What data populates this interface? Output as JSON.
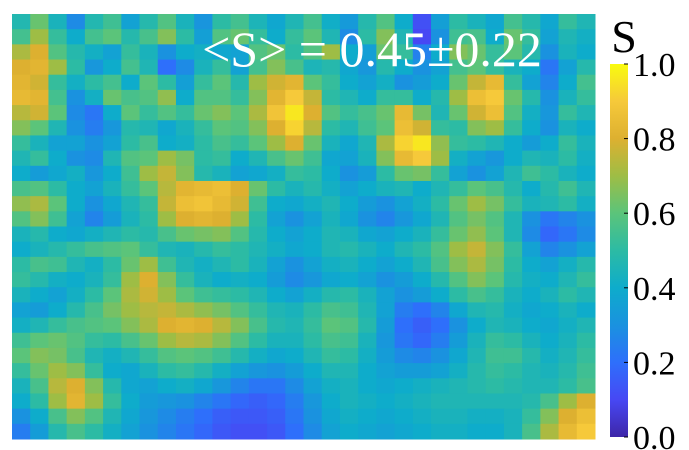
{
  "chart_data": {
    "type": "heatmap",
    "rows": 28,
    "cols": 32,
    "colormap": "parula",
    "clim": [
      0.0,
      1.0
    ],
    "annotation": "<S> = 0.45±0.22",
    "colorbar": {
      "title": "S",
      "ticks": [
        {
          "value": 0.0,
          "label": "0.0"
        },
        {
          "value": 0.2,
          "label": "0.2"
        },
        {
          "value": 0.4,
          "label": "0.4"
        },
        {
          "value": 0.6,
          "label": "0.6"
        },
        {
          "value": 0.8,
          "label": "0.8"
        },
        {
          "value": 1.0,
          "label": "1.0"
        }
      ]
    },
    "values": [
      [
        0.47,
        0.62,
        0.44,
        0.28,
        0.47,
        0.54,
        0.36,
        0.48,
        0.58,
        0.44,
        0.31,
        0.5,
        0.55,
        0.45,
        0.38,
        0.46,
        0.55,
        0.41,
        0.33,
        0.48,
        0.58,
        0.4,
        0.12,
        0.35,
        0.5,
        0.44,
        0.38,
        0.55,
        0.48,
        0.38,
        0.52,
        0.46
      ],
      [
        0.55,
        0.7,
        0.52,
        0.4,
        0.55,
        0.6,
        0.48,
        0.56,
        0.66,
        0.5,
        0.35,
        0.58,
        0.62,
        0.52,
        0.4,
        0.52,
        0.6,
        0.46,
        0.28,
        0.5,
        0.66,
        0.46,
        0.1,
        0.3,
        0.54,
        0.56,
        0.4,
        0.62,
        0.52,
        0.36,
        0.46,
        0.42
      ],
      [
        0.72,
        0.8,
        0.58,
        0.48,
        0.42,
        0.36,
        0.52,
        0.44,
        0.3,
        0.4,
        0.42,
        0.38,
        0.36,
        0.58,
        0.62,
        0.5,
        0.58,
        0.7,
        0.4,
        0.35,
        0.62,
        0.52,
        0.25,
        0.4,
        0.66,
        0.62,
        0.52,
        0.6,
        0.48,
        0.3,
        0.44,
        0.4
      ],
      [
        0.8,
        0.82,
        0.7,
        0.5,
        0.32,
        0.4,
        0.55,
        0.46,
        0.2,
        0.28,
        0.44,
        0.52,
        0.36,
        0.55,
        0.66,
        0.56,
        0.45,
        0.48,
        0.38,
        0.32,
        0.48,
        0.4,
        0.3,
        0.36,
        0.55,
        0.6,
        0.52,
        0.44,
        0.4,
        0.22,
        0.36,
        0.48
      ],
      [
        0.82,
        0.78,
        0.52,
        0.42,
        0.5,
        0.55,
        0.4,
        0.6,
        0.5,
        0.35,
        0.52,
        0.6,
        0.48,
        0.7,
        0.78,
        0.82,
        0.6,
        0.52,
        0.4,
        0.36,
        0.42,
        0.3,
        0.34,
        0.4,
        0.62,
        0.76,
        0.84,
        0.52,
        0.36,
        0.26,
        0.4,
        0.55
      ],
      [
        0.84,
        0.82,
        0.55,
        0.3,
        0.42,
        0.62,
        0.56,
        0.58,
        0.68,
        0.4,
        0.58,
        0.58,
        0.52,
        0.66,
        0.82,
        0.9,
        0.76,
        0.5,
        0.46,
        0.4,
        0.52,
        0.52,
        0.4,
        0.48,
        0.7,
        0.86,
        0.9,
        0.62,
        0.48,
        0.3,
        0.44,
        0.52
      ],
      [
        0.74,
        0.78,
        0.6,
        0.28,
        0.22,
        0.4,
        0.6,
        0.52,
        0.58,
        0.52,
        0.62,
        0.66,
        0.6,
        0.72,
        0.88,
        0.96,
        0.8,
        0.58,
        0.52,
        0.56,
        0.62,
        0.84,
        0.64,
        0.46,
        0.62,
        0.78,
        0.86,
        0.58,
        0.42,
        0.32,
        0.52,
        0.46
      ],
      [
        0.66,
        0.6,
        0.46,
        0.3,
        0.24,
        0.32,
        0.48,
        0.46,
        0.38,
        0.44,
        0.52,
        0.6,
        0.58,
        0.66,
        0.8,
        0.92,
        0.74,
        0.5,
        0.46,
        0.54,
        0.6,
        0.86,
        0.78,
        0.52,
        0.5,
        0.66,
        0.7,
        0.52,
        0.4,
        0.3,
        0.44,
        0.4
      ],
      [
        0.52,
        0.44,
        0.36,
        0.36,
        0.3,
        0.36,
        0.5,
        0.56,
        0.4,
        0.42,
        0.5,
        0.56,
        0.52,
        0.6,
        0.7,
        0.8,
        0.62,
        0.44,
        0.38,
        0.46,
        0.72,
        0.92,
        0.96,
        0.68,
        0.52,
        0.5,
        0.46,
        0.4,
        0.34,
        0.4,
        0.52,
        0.44
      ],
      [
        0.46,
        0.52,
        0.4,
        0.3,
        0.28,
        0.46,
        0.58,
        0.6,
        0.7,
        0.64,
        0.5,
        0.52,
        0.4,
        0.46,
        0.56,
        0.62,
        0.54,
        0.38,
        0.36,
        0.44,
        0.66,
        0.84,
        0.9,
        0.7,
        0.42,
        0.36,
        0.32,
        0.4,
        0.46,
        0.44,
        0.5,
        0.42
      ],
      [
        0.4,
        0.34,
        0.38,
        0.42,
        0.32,
        0.4,
        0.54,
        0.7,
        0.76,
        0.66,
        0.48,
        0.44,
        0.36,
        0.38,
        0.42,
        0.52,
        0.5,
        0.4,
        0.3,
        0.34,
        0.5,
        0.62,
        0.64,
        0.52,
        0.36,
        0.3,
        0.36,
        0.46,
        0.54,
        0.5,
        0.44,
        0.4
      ],
      [
        0.56,
        0.58,
        0.5,
        0.4,
        0.36,
        0.44,
        0.52,
        0.6,
        0.74,
        0.82,
        0.84,
        0.86,
        0.8,
        0.62,
        0.5,
        0.44,
        0.48,
        0.42,
        0.36,
        0.4,
        0.44,
        0.46,
        0.4,
        0.46,
        0.52,
        0.6,
        0.56,
        0.48,
        0.4,
        0.48,
        0.54,
        0.46
      ],
      [
        0.68,
        0.72,
        0.6,
        0.4,
        0.3,
        0.38,
        0.46,
        0.52,
        0.76,
        0.86,
        0.88,
        0.84,
        0.78,
        0.54,
        0.4,
        0.38,
        0.42,
        0.46,
        0.4,
        0.34,
        0.3,
        0.36,
        0.42,
        0.5,
        0.62,
        0.7,
        0.64,
        0.52,
        0.44,
        0.46,
        0.5,
        0.42
      ],
      [
        0.58,
        0.66,
        0.54,
        0.36,
        0.26,
        0.34,
        0.44,
        0.5,
        0.7,
        0.8,
        0.82,
        0.8,
        0.7,
        0.5,
        0.36,
        0.3,
        0.36,
        0.44,
        0.38,
        0.3,
        0.26,
        0.32,
        0.38,
        0.46,
        0.58,
        0.64,
        0.58,
        0.46,
        0.3,
        0.22,
        0.26,
        0.3
      ],
      [
        0.44,
        0.48,
        0.4,
        0.38,
        0.42,
        0.46,
        0.5,
        0.48,
        0.56,
        0.62,
        0.64,
        0.66,
        0.58,
        0.48,
        0.4,
        0.36,
        0.4,
        0.46,
        0.44,
        0.38,
        0.36,
        0.4,
        0.44,
        0.52,
        0.62,
        0.68,
        0.6,
        0.46,
        0.28,
        0.18,
        0.22,
        0.28
      ],
      [
        0.4,
        0.44,
        0.48,
        0.52,
        0.56,
        0.58,
        0.6,
        0.52,
        0.46,
        0.44,
        0.48,
        0.52,
        0.5,
        0.46,
        0.42,
        0.38,
        0.4,
        0.46,
        0.48,
        0.44,
        0.4,
        0.46,
        0.5,
        0.58,
        0.7,
        0.76,
        0.66,
        0.52,
        0.36,
        0.26,
        0.3,
        0.36
      ],
      [
        0.5,
        0.56,
        0.54,
        0.46,
        0.42,
        0.5,
        0.62,
        0.7,
        0.54,
        0.46,
        0.42,
        0.46,
        0.5,
        0.44,
        0.36,
        0.3,
        0.36,
        0.42,
        0.44,
        0.4,
        0.36,
        0.4,
        0.46,
        0.56,
        0.66,
        0.72,
        0.64,
        0.5,
        0.4,
        0.36,
        0.42,
        0.48
      ],
      [
        0.52,
        0.48,
        0.42,
        0.4,
        0.44,
        0.52,
        0.7,
        0.8,
        0.66,
        0.52,
        0.44,
        0.4,
        0.42,
        0.4,
        0.34,
        0.28,
        0.32,
        0.38,
        0.4,
        0.36,
        0.3,
        0.34,
        0.4,
        0.48,
        0.58,
        0.66,
        0.6,
        0.48,
        0.42,
        0.4,
        0.46,
        0.52
      ],
      [
        0.44,
        0.4,
        0.36,
        0.42,
        0.5,
        0.6,
        0.72,
        0.78,
        0.7,
        0.6,
        0.54,
        0.52,
        0.5,
        0.46,
        0.4,
        0.36,
        0.42,
        0.48,
        0.5,
        0.44,
        0.36,
        0.3,
        0.34,
        0.4,
        0.5,
        0.56,
        0.52,
        0.44,
        0.4,
        0.44,
        0.5,
        0.46
      ],
      [
        0.36,
        0.34,
        0.4,
        0.48,
        0.56,
        0.64,
        0.7,
        0.74,
        0.76,
        0.72,
        0.68,
        0.64,
        0.58,
        0.52,
        0.46,
        0.44,
        0.5,
        0.56,
        0.54,
        0.46,
        0.36,
        0.24,
        0.2,
        0.26,
        0.38,
        0.46,
        0.48,
        0.42,
        0.38,
        0.4,
        0.44,
        0.4
      ],
      [
        0.42,
        0.46,
        0.52,
        0.56,
        0.58,
        0.6,
        0.66,
        0.72,
        0.8,
        0.82,
        0.8,
        0.74,
        0.66,
        0.56,
        0.48,
        0.46,
        0.52,
        0.6,
        0.58,
        0.48,
        0.34,
        0.2,
        0.16,
        0.2,
        0.3,
        0.4,
        0.46,
        0.44,
        0.4,
        0.38,
        0.42,
        0.46
      ],
      [
        0.54,
        0.6,
        0.62,
        0.58,
        0.52,
        0.5,
        0.56,
        0.62,
        0.7,
        0.74,
        0.72,
        0.66,
        0.58,
        0.5,
        0.44,
        0.44,
        0.5,
        0.56,
        0.54,
        0.44,
        0.32,
        0.22,
        0.18,
        0.24,
        0.34,
        0.44,
        0.52,
        0.5,
        0.44,
        0.4,
        0.44,
        0.5
      ],
      [
        0.6,
        0.66,
        0.64,
        0.56,
        0.46,
        0.42,
        0.46,
        0.52,
        0.58,
        0.6,
        0.58,
        0.54,
        0.48,
        0.42,
        0.38,
        0.4,
        0.46,
        0.52,
        0.5,
        0.42,
        0.34,
        0.28,
        0.26,
        0.3,
        0.38,
        0.46,
        0.54,
        0.54,
        0.48,
        0.42,
        0.46,
        0.52
      ],
      [
        0.52,
        0.62,
        0.7,
        0.66,
        0.52,
        0.4,
        0.38,
        0.44,
        0.5,
        0.52,
        0.48,
        0.42,
        0.36,
        0.32,
        0.3,
        0.34,
        0.4,
        0.46,
        0.46,
        0.4,
        0.36,
        0.34,
        0.34,
        0.36,
        0.42,
        0.48,
        0.52,
        0.5,
        0.46,
        0.44,
        0.48,
        0.54
      ],
      [
        0.44,
        0.56,
        0.74,
        0.8,
        0.66,
        0.48,
        0.38,
        0.36,
        0.4,
        0.42,
        0.38,
        0.32,
        0.26,
        0.22,
        0.22,
        0.28,
        0.36,
        0.42,
        0.44,
        0.4,
        0.38,
        0.4,
        0.42,
        0.44,
        0.46,
        0.48,
        0.5,
        0.48,
        0.46,
        0.46,
        0.5,
        0.56
      ],
      [
        0.4,
        0.5,
        0.7,
        0.82,
        0.7,
        0.52,
        0.4,
        0.34,
        0.32,
        0.3,
        0.26,
        0.22,
        0.18,
        0.16,
        0.18,
        0.24,
        0.32,
        0.4,
        0.44,
        0.42,
        0.4,
        0.42,
        0.44,
        0.46,
        0.46,
        0.46,
        0.46,
        0.46,
        0.48,
        0.56,
        0.7,
        0.8
      ],
      [
        0.3,
        0.4,
        0.56,
        0.66,
        0.58,
        0.46,
        0.38,
        0.32,
        0.28,
        0.24,
        0.2,
        0.16,
        0.14,
        0.14,
        0.16,
        0.22,
        0.3,
        0.38,
        0.42,
        0.4,
        0.38,
        0.4,
        0.42,
        0.44,
        0.44,
        0.42,
        0.42,
        0.44,
        0.52,
        0.66,
        0.8,
        0.86
      ],
      [
        0.24,
        0.34,
        0.48,
        0.56,
        0.5,
        0.42,
        0.36,
        0.3,
        0.26,
        0.22,
        0.18,
        0.14,
        0.12,
        0.12,
        0.14,
        0.2,
        0.28,
        0.36,
        0.4,
        0.38,
        0.36,
        0.38,
        0.4,
        0.42,
        0.42,
        0.4,
        0.4,
        0.44,
        0.56,
        0.72,
        0.84,
        0.9
      ]
    ]
  }
}
